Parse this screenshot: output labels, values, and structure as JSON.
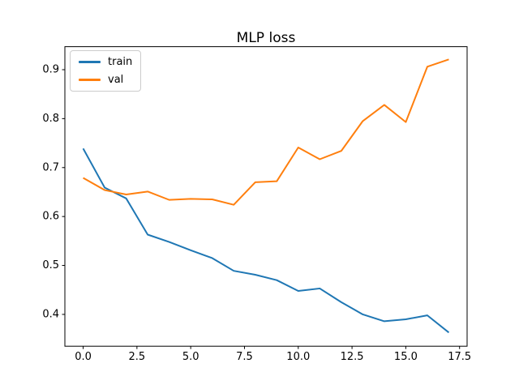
{
  "colors": {
    "background": "#ffffff",
    "axis": "#000000",
    "tick_text": "#000000",
    "legend_border": "#cccccc",
    "train_line": "#1f77b4",
    "val_line": "#ff7f0e"
  },
  "chart_data": {
    "type": "line",
    "title": "MLP loss",
    "xlabel": "",
    "ylabel": "",
    "grid": false,
    "legend": {
      "position": "upper left",
      "entries": [
        "train",
        "val"
      ]
    },
    "x": [
      0,
      1,
      2,
      3,
      4,
      5,
      6,
      7,
      8,
      9,
      10,
      11,
      12,
      13,
      14,
      15,
      16,
      17
    ],
    "series": [
      {
        "name": "train",
        "color": "#1f77b4",
        "values": [
          0.739,
          0.659,
          0.637,
          0.563,
          0.548,
          0.531,
          0.515,
          0.489,
          0.481,
          0.47,
          0.448,
          0.453,
          0.425,
          0.4,
          0.386,
          0.39,
          0.398,
          0.363
        ]
      },
      {
        "name": "val",
        "color": "#ff7f0e",
        "values": [
          0.679,
          0.654,
          0.645,
          0.651,
          0.634,
          0.636,
          0.635,
          0.624,
          0.67,
          0.672,
          0.741,
          0.717,
          0.734,
          0.795,
          0.828,
          0.793,
          0.906,
          0.921
        ]
      }
    ],
    "xticks": [
      0.0,
      2.5,
      5.0,
      7.5,
      10.0,
      12.5,
      15.0,
      17.5
    ],
    "xtick_labels": [
      "0.0",
      "2.5",
      "5.0",
      "7.5",
      "10.0",
      "12.5",
      "15.0",
      "17.5"
    ],
    "yticks": [
      0.4,
      0.5,
      0.6,
      0.7,
      0.8,
      0.9
    ],
    "ytick_labels": [
      "0.4",
      "0.5",
      "0.6",
      "0.7",
      "0.8",
      "0.9"
    ],
    "xlim": [
      -0.85,
      17.85
    ],
    "ylim": [
      0.335,
      0.947
    ]
  }
}
